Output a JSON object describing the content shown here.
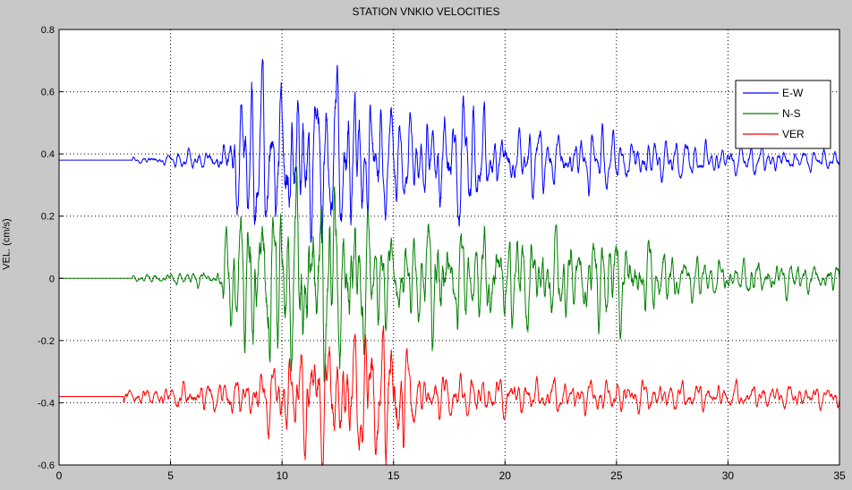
{
  "chart_data": {
    "type": "line",
    "title": "STATION VNKIO VELOCITIES",
    "xlabel": "",
    "ylabel": "VEL. (cm/s)",
    "xlim": [
      0,
      35
    ],
    "ylim": [
      -0.6,
      0.8
    ],
    "xticks": [
      0,
      5,
      10,
      15,
      20,
      25,
      30,
      35
    ],
    "yticks": [
      -0.6,
      -0.4,
      -0.2,
      0,
      0.2,
      0.4,
      0.6,
      0.8
    ],
    "ytick_labels": [
      "-0.6",
      "-0.4",
      "-0.2",
      "0",
      "0.2",
      "0.4",
      "0.6",
      "0.8"
    ],
    "grid": true,
    "legend_position": "top-right",
    "series": [
      {
        "name": "E-W",
        "color": "#0000ff",
        "baseline": 0.38,
        "onset": 3.3,
        "envelope": [
          [
            0,
            0
          ],
          [
            3.3,
            0.006
          ],
          [
            4,
            0.012
          ],
          [
            7,
            0.025
          ],
          [
            7.8,
            0.12
          ],
          [
            9,
            0.2
          ],
          [
            11,
            0.2
          ],
          [
            13,
            0.2
          ],
          [
            14.5,
            0.15
          ],
          [
            16,
            0.1
          ],
          [
            18,
            0.16
          ],
          [
            19,
            0.1
          ],
          [
            22,
            0.07
          ],
          [
            25,
            0.07
          ],
          [
            27,
            0.05
          ],
          [
            30,
            0.04
          ],
          [
            33,
            0.025
          ],
          [
            35,
            0.02
          ]
        ]
      },
      {
        "name": "N-S",
        "color": "#008000",
        "baseline": 0.0,
        "onset": 3.3,
        "envelope": [
          [
            0,
            0
          ],
          [
            3.3,
            0.006
          ],
          [
            4,
            0.01
          ],
          [
            7,
            0.02
          ],
          [
            7.8,
            0.15
          ],
          [
            9,
            0.21
          ],
          [
            11.5,
            0.22
          ],
          [
            13,
            0.21
          ],
          [
            14.5,
            0.13
          ],
          [
            16,
            0.1
          ],
          [
            17,
            0.17
          ],
          [
            18,
            0.11
          ],
          [
            21,
            0.12
          ],
          [
            23,
            0.1
          ],
          [
            25,
            0.12
          ],
          [
            27,
            0.07
          ],
          [
            30,
            0.04
          ],
          [
            33,
            0.04
          ],
          [
            35,
            0.03
          ]
        ]
      },
      {
        "name": "VER",
        "color": "#ff0000",
        "baseline": -0.38,
        "onset": 2.9,
        "envelope": [
          [
            0,
            0
          ],
          [
            2.9,
            0.015
          ],
          [
            4,
            0.02
          ],
          [
            7.5,
            0.04
          ],
          [
            9,
            0.06
          ],
          [
            10,
            0.1
          ],
          [
            11,
            0.14
          ],
          [
            13,
            0.15
          ],
          [
            15,
            0.2
          ],
          [
            16,
            0.06
          ],
          [
            19,
            0.05
          ],
          [
            22,
            0.04
          ],
          [
            25,
            0.04
          ],
          [
            30,
            0.03
          ],
          [
            35,
            0.025
          ]
        ]
      }
    ]
  }
}
